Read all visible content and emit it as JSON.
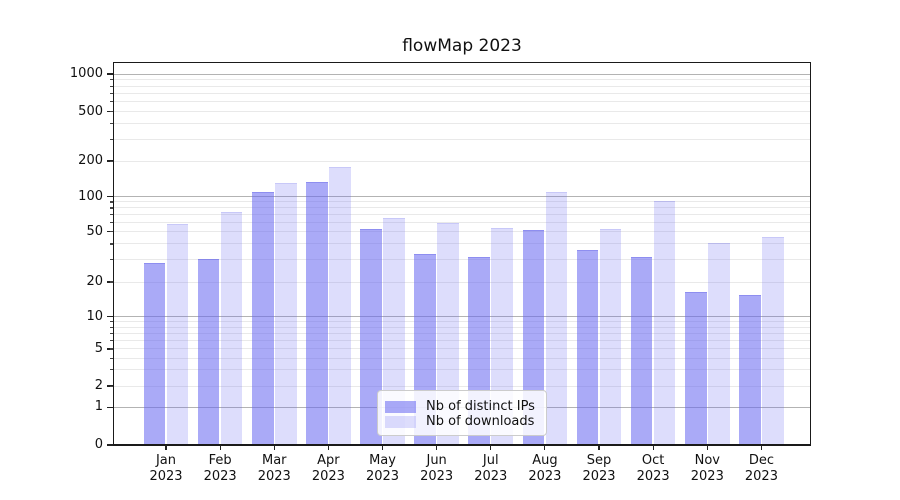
{
  "title": "flowMap 2023",
  "chart_data": {
    "type": "bar",
    "title": "flowMap 2023",
    "x_tick_year": "2023",
    "months": [
      "Jan",
      "Feb",
      "Mar",
      "Apr",
      "May",
      "Jun",
      "Jul",
      "Aug",
      "Sep",
      "Oct",
      "Nov",
      "Dec"
    ],
    "categories": [
      "Jan 2023",
      "Feb 2023",
      "Mar 2023",
      "Apr 2023",
      "May 2023",
      "Jun 2023",
      "Jul 2023",
      "Aug 2023",
      "Sep 2023",
      "Oct 2023",
      "Nov 2023",
      "Dec 2023"
    ],
    "series": [
      {
        "name": "Nb of distinct IPs",
        "values": [
          28,
          30,
          107,
          131,
          52,
          33,
          31,
          51,
          35,
          31,
          16,
          15
        ]
      },
      {
        "name": "Nb of downloads",
        "values": [
          57,
          72,
          127,
          174,
          64,
          58,
          53,
          107,
          52,
          90,
          40,
          45
        ]
      }
    ],
    "y_axis": {
      "scale": "symlog",
      "tick_labels": [
        "0",
        "1",
        "2",
        "5",
        "10",
        "20",
        "50",
        "100",
        "200",
        "500",
        "1000"
      ],
      "tick_values": [
        0,
        1,
        2,
        5,
        10,
        20,
        50,
        100,
        200,
        500,
        1000
      ],
      "major_gridline_values": [
        1,
        10,
        100,
        1000
      ],
      "ylim": [
        0,
        1250
      ],
      "grid": true
    },
    "legend": {
      "position": "lower-center-inside",
      "labels": [
        "Nb of distinct IPs",
        "Nb of downloads"
      ]
    }
  },
  "colors": {
    "bar_distinct_ips": "rgba(100,100,240,0.55)",
    "bar_downloads": "rgba(100,100,240,0.22)",
    "bar_edge_dark": "rgba(80,80,225,0.30)",
    "bar_edge_light": "rgba(80,80,225,0.15)",
    "grid_major": "#b3b3b3",
    "grid_minor": "#e9e9e9",
    "axis": "#1a1a1a",
    "text": "#111111",
    "legend_border": "#cccccc",
    "legend_bg": "rgba(255,255,255,0.85)"
  }
}
